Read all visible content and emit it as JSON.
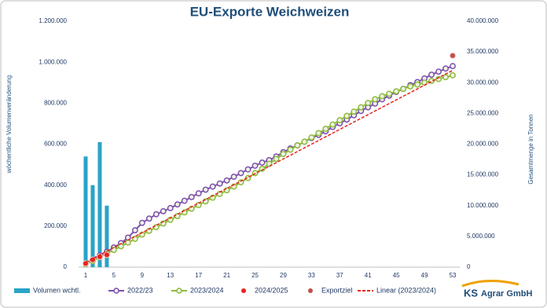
{
  "chart_data": {
    "type": "combo",
    "title": "EU-Exporte Weichweizen",
    "y_label": "wöchentliche Volumenveränderung",
    "y2_label": "Gesamtmenge in Tonnen",
    "xlim": [
      0,
      54
    ],
    "xticks": [
      1,
      5,
      9,
      13,
      17,
      21,
      25,
      29,
      33,
      37,
      41,
      45,
      49,
      53
    ],
    "ylim": [
      0,
      1200000
    ],
    "yticks": [
      {
        "value": 0,
        "label": "0"
      },
      {
        "value": 200000,
        "label": "200.000"
      },
      {
        "value": 400000,
        "label": "400.000"
      },
      {
        "value": 600000,
        "label": "600.000"
      },
      {
        "value": 800000,
        "label": "800.000"
      },
      {
        "value": 1000000,
        "label": "1.000.000"
      },
      {
        "value": 1200000,
        "label": "1.200.000"
      }
    ],
    "y2lim": [
      0,
      40000000
    ],
    "y2ticks": [
      {
        "value": 0,
        "label": "0"
      },
      {
        "value": 5000000,
        "label": "5.000.000"
      },
      {
        "value": 10000000,
        "label": "10.000.000"
      },
      {
        "value": 15000000,
        "label": "15.000.000"
      },
      {
        "value": 20000000,
        "label": "20.000.000"
      },
      {
        "value": 25000000,
        "label": "25.000.000"
      },
      {
        "value": 30000000,
        "label": "30.000.000"
      },
      {
        "value": 35000000,
        "label": "35.000.000"
      },
      {
        "value": 40000000,
        "label": "40.000.000"
      }
    ],
    "series": [
      {
        "name": "Volumen wchtl.",
        "color": "#2ba3c6",
        "kind": "bar",
        "axis": "y",
        "x": [
          1,
          2,
          3,
          4
        ],
        "values": [
          540000,
          400000,
          610000,
          300000
        ]
      },
      {
        "name": "2022/23",
        "color": "#7c4fb0",
        "kind": "line",
        "axis": "y2",
        "x": [
          1,
          2,
          3,
          4,
          5,
          6,
          7,
          8,
          9,
          10,
          11,
          12,
          13,
          14,
          15,
          16,
          17,
          18,
          19,
          20,
          21,
          22,
          23,
          24,
          25,
          26,
          27,
          28,
          29,
          30,
          31,
          32,
          33,
          34,
          35,
          36,
          37,
          38,
          39,
          40,
          41,
          42,
          43,
          44,
          45,
          46,
          47,
          48,
          49,
          50,
          51,
          52,
          53
        ],
        "values": [
          600000,
          1200000,
          1900000,
          2500000,
          3200000,
          3900000,
          4800000,
          6000000,
          7200000,
          7900000,
          8600000,
          9100000,
          9600000,
          10200000,
          10800000,
          11400000,
          12000000,
          12600000,
          13100000,
          13600000,
          14100000,
          14700000,
          15300000,
          15900000,
          16500000,
          17000000,
          17400000,
          18000000,
          18700000,
          19300000,
          19800000,
          20400000,
          21000000,
          21500000,
          22100000,
          22800000,
          23400000,
          24000000,
          24700000,
          25400000,
          26000000,
          26600000,
          27300000,
          27900000,
          28500000,
          29000000,
          29600000,
          30100000,
          30700000,
          31300000,
          31800000,
          32300000,
          32700000
        ]
      },
      {
        "name": "2023/2024",
        "color": "#8dbb3c",
        "kind": "line",
        "axis": "y2",
        "x": [
          1,
          2,
          3,
          4,
          5,
          6,
          7,
          8,
          9,
          10,
          11,
          12,
          13,
          14,
          15,
          16,
          17,
          18,
          19,
          20,
          21,
          22,
          23,
          24,
          25,
          26,
          27,
          28,
          29,
          30,
          31,
          32,
          33,
          34,
          35,
          36,
          37,
          38,
          39,
          40,
          41,
          42,
          43,
          44,
          45,
          46,
          47,
          48,
          49,
          50,
          51,
          52,
          53
        ],
        "values": [
          500000,
          1000000,
          1600000,
          2200000,
          2800000,
          3400000,
          4000000,
          4600000,
          5300000,
          5900000,
          6500000,
          7100000,
          7700000,
          8300000,
          8900000,
          9500000,
          10100000,
          10700000,
          11300000,
          11900000,
          12500000,
          13100000,
          13800000,
          14500000,
          15300000,
          16000000,
          16800000,
          17600000,
          18400000,
          19100000,
          19800000,
          20400000,
          21100000,
          21800000,
          22500000,
          23200000,
          23900000,
          24600000,
          25300000,
          26000000,
          26700000,
          27300000,
          27800000,
          28200000,
          28600000,
          29000000,
          29400000,
          29700000,
          30000000,
          30300000,
          30600000,
          30900000,
          31200000
        ]
      },
      {
        "name": "2024/2025",
        "color": "#e8231f",
        "kind": "scatter",
        "axis": "y2",
        "x": [
          1,
          2,
          3,
          4
        ],
        "values": [
          600000,
          1200000,
          1700000,
          2000000
        ]
      },
      {
        "name": "Exportziel",
        "color": "#c0504d",
        "kind": "scatter",
        "axis": "y2",
        "x": [
          53
        ],
        "values": [
          34400000
        ]
      },
      {
        "name": "Linear (2023/2024)",
        "color": "#e8231f",
        "kind": "trend",
        "axis": "y2",
        "x": [
          1,
          53
        ],
        "values": [
          800000,
          32000000
        ]
      }
    ]
  },
  "logo": {
    "initials": "KS",
    "name": "Agrar GmbH"
  }
}
